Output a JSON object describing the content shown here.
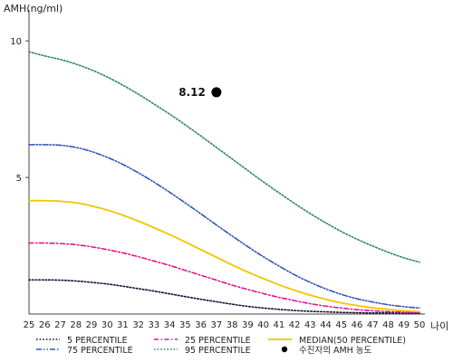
{
  "chart_data": {
    "type": "line",
    "ylabel": "AMH(ng/ml)",
    "xlabel": "나이",
    "xlim": [
      25,
      50
    ],
    "ylim": [
      0,
      11
    ],
    "x_ticks": [
      25,
      26,
      27,
      28,
      29,
      30,
      31,
      32,
      33,
      34,
      35,
      36,
      37,
      38,
      39,
      40,
      41,
      42,
      43,
      44,
      45,
      46,
      47,
      48,
      49,
      50
    ],
    "y_ticks": [
      5,
      10
    ],
    "x": [
      25,
      26,
      27,
      28,
      29,
      30,
      31,
      32,
      33,
      34,
      35,
      36,
      37,
      38,
      39,
      40,
      41,
      42,
      43,
      44,
      45,
      46,
      47,
      48,
      49,
      50
    ],
    "series": [
      {
        "name": "5 PERCENTILE",
        "color": "#111133",
        "dash": "dotted",
        "values": [
          1.25,
          1.25,
          1.24,
          1.21,
          1.16,
          1.1,
          1.02,
          0.93,
          0.84,
          0.74,
          0.64,
          0.54,
          0.45,
          0.36,
          0.28,
          0.22,
          0.17,
          0.13,
          0.1,
          0.08,
          0.06,
          0.05,
          0.04,
          0.04,
          0.03,
          0.03
        ]
      },
      {
        "name": "25 PERCENTILE",
        "color": "#e0148c",
        "dash": "dashdot",
        "values": [
          2.6,
          2.6,
          2.58,
          2.54,
          2.46,
          2.36,
          2.24,
          2.1,
          1.94,
          1.78,
          1.6,
          1.42,
          1.24,
          1.06,
          0.9,
          0.75,
          0.61,
          0.49,
          0.38,
          0.29,
          0.22,
          0.16,
          0.12,
          0.09,
          0.07,
          0.05
        ]
      },
      {
        "name": "MEDIAN(50 PERCENTILE)",
        "color": "#f2c500",
        "dash": "solid",
        "values": [
          4.15,
          4.15,
          4.13,
          4.07,
          3.96,
          3.81,
          3.62,
          3.4,
          3.16,
          2.91,
          2.64,
          2.36,
          2.08,
          1.8,
          1.54,
          1.3,
          1.07,
          0.87,
          0.69,
          0.54,
          0.41,
          0.31,
          0.23,
          0.17,
          0.12,
          0.09
        ]
      },
      {
        "name": "75 PERCENTILE",
        "color": "#3355bb",
        "dash": "dashdotdot",
        "values": [
          6.2,
          6.2,
          6.18,
          6.1,
          5.95,
          5.74,
          5.48,
          5.17,
          4.83,
          4.46,
          4.07,
          3.67,
          3.26,
          2.86,
          2.47,
          2.1,
          1.76,
          1.44,
          1.16,
          0.92,
          0.72,
          0.56,
          0.44,
          0.34,
          0.27,
          0.22
        ]
      },
      {
        "name": "95 PERCENTILE",
        "color": "#2e8b57",
        "dash": "dotted",
        "values": [
          9.6,
          9.45,
          9.32,
          9.15,
          8.94,
          8.68,
          8.38,
          8.05,
          7.69,
          7.32,
          6.93,
          6.52,
          6.1,
          5.68,
          5.26,
          4.84,
          4.44,
          4.05,
          3.68,
          3.34,
          3.02,
          2.74,
          2.49,
          2.26,
          2.06,
          1.9
        ]
      }
    ],
    "marker": {
      "name": "수진자의 AMH 농도",
      "x": 37,
      "y": 8.12,
      "label": "8.12",
      "color": "#000000"
    },
    "legend": {
      "placement": "bottom",
      "items": [
        {
          "label": "5 PERCENTILE",
          "series": 0
        },
        {
          "label": "25 PERCENTILE",
          "series": 1
        },
        {
          "label": "MEDIAN(50 PERCENTILE)",
          "series": 2
        },
        {
          "label": "75 PERCENTILE",
          "series": 3
        },
        {
          "label": "95 PERCENTILE",
          "series": 4
        },
        {
          "label": "수진자의 AMH 농도",
          "marker": true
        }
      ]
    },
    "grid": false
  }
}
